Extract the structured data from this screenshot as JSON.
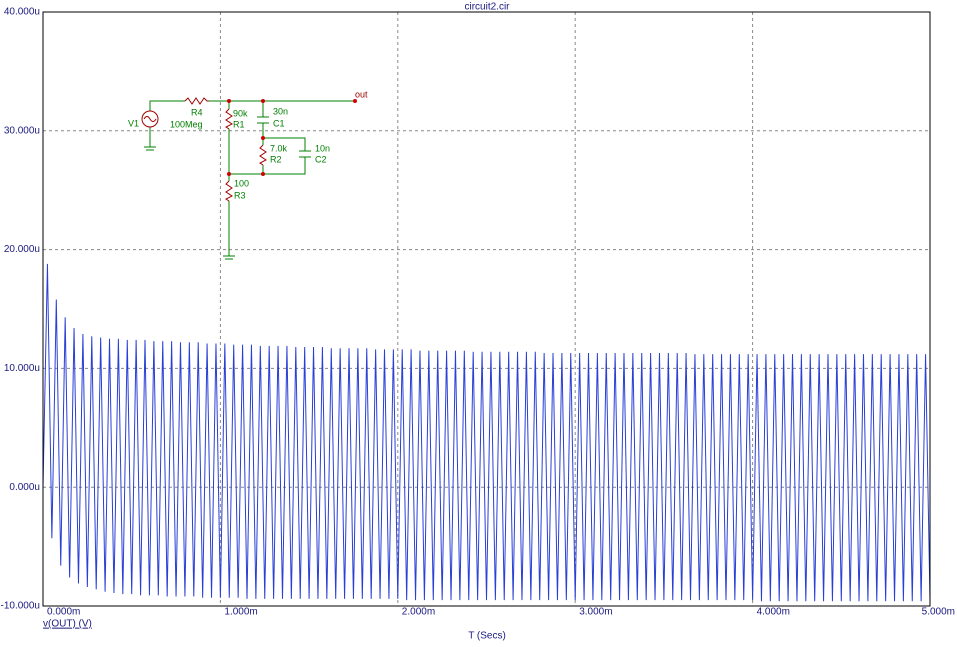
{
  "chart_data": {
    "type": "line",
    "title": "circuit2.cir",
    "xlabel": "T (Secs)",
    "xlim": [
      0,
      5
    ],
    "xticks": [
      {
        "value": 0,
        "label": "0.000m"
      },
      {
        "value": 1,
        "label": "1.000m"
      },
      {
        "value": 2,
        "label": "2.000m"
      },
      {
        "value": 3,
        "label": "3.000m"
      },
      {
        "value": 4,
        "label": "4.000m"
      },
      {
        "value": 5,
        "label": "5.000m"
      }
    ],
    "ylim": [
      -10,
      40
    ],
    "yticks": [
      {
        "value": -10,
        "label": "-10.000u"
      },
      {
        "value": 0,
        "label": "0.000u"
      },
      {
        "value": 10,
        "label": "10.000u"
      },
      {
        "value": 20,
        "label": "20.000u"
      },
      {
        "value": 30,
        "label": "30.000u"
      },
      {
        "value": 40,
        "label": "40.000u"
      }
    ],
    "grid": true,
    "x": [
      0,
      0.025,
      0.05,
      0.075,
      0.1,
      0.125,
      0.15,
      0.175,
      0.2,
      0.225,
      0.25,
      0.275,
      0.3,
      0.325,
      0.35,
      0.375,
      0.4,
      0.425,
      0.45,
      0.475,
      0.5,
      0.525,
      0.55,
      0.575,
      0.6,
      0.625,
      0.65,
      0.675,
      0.7,
      0.725,
      0.75,
      0.775,
      0.8,
      0.825,
      0.85,
      0.875,
      0.9,
      0.925,
      0.95,
      0.975,
      1,
      1.025,
      1.05,
      1.075,
      1.1,
      1.125,
      1.15,
      1.175,
      1.2,
      1.225,
      1.25,
      1.275,
      1.3,
      1.325,
      1.35,
      1.375,
      1.4,
      1.425,
      1.45,
      1.475,
      1.5,
      1.525,
      1.55,
      1.575,
      1.6,
      1.625,
      1.65,
      1.675,
      1.7,
      1.725,
      1.75,
      1.775,
      1.8,
      1.825,
      1.85,
      1.875,
      1.9,
      1.925,
      1.95,
      1.975,
      2,
      2.025,
      2.05,
      2.075,
      2.1,
      2.125,
      2.15,
      2.175,
      2.2,
      2.225,
      2.25,
      2.275,
      2.3,
      2.325,
      2.35,
      2.375,
      2.4,
      2.425,
      2.45,
      2.475,
      2.5,
      2.525,
      2.55,
      2.575,
      2.6,
      2.625,
      2.65,
      2.675,
      2.7,
      2.725,
      2.75,
      2.775,
      2.8,
      2.825,
      2.85,
      2.875,
      2.9,
      2.925,
      2.95,
      2.975,
      3,
      3.025,
      3.05,
      3.075,
      3.1,
      3.125,
      3.15,
      3.175,
      3.2,
      3.225,
      3.25,
      3.275,
      3.3,
      3.325,
      3.35,
      3.375,
      3.4,
      3.425,
      3.45,
      3.475,
      3.5,
      3.525,
      3.55,
      3.575,
      3.6,
      3.625,
      3.65,
      3.675,
      3.7,
      3.725,
      3.75,
      3.775,
      3.8,
      3.825,
      3.85,
      3.875,
      3.9,
      3.925,
      3.95,
      3.975,
      4,
      4.025,
      4.05,
      4.075,
      4.1,
      4.125,
      4.15,
      4.175,
      4.2,
      4.225,
      4.25,
      4.275,
      4.3,
      4.325,
      4.35,
      4.375,
      4.4,
      4.425,
      4.45,
      4.475,
      4.5,
      4.525,
      4.55,
      4.575,
      4.6,
      4.625,
      4.65,
      4.675,
      4.7,
      4.725,
      4.75,
      4.775,
      4.8,
      4.825,
      4.85,
      4.875,
      4.9,
      4.925,
      4.95,
      4.975,
      5
    ],
    "series": [
      {
        "name": "v(OUT) (V)",
        "color": "#2a3fd6",
        "values": [
          0,
          18.8,
          -4.3,
          15.8,
          -6.6,
          14.3,
          -7.6,
          13.4,
          -8.1,
          12.9,
          -8.4,
          12.7,
          -8.6,
          12.6,
          -8.8,
          12.5,
          -8.9,
          12.5,
          -9.0,
          12.4,
          -9.0,
          12.4,
          -9.1,
          12.4,
          -9.1,
          12.3,
          -9.1,
          12.3,
          -9.2,
          12.3,
          -9.2,
          12.2,
          -9.2,
          12.2,
          -9.2,
          12.2,
          -9.3,
          12.1,
          -9.3,
          12.1,
          -9.3,
          12.1,
          -9.3,
          12.0,
          -9.3,
          12.0,
          -9.4,
          12.0,
          -9.4,
          11.9,
          -9.4,
          11.9,
          -9.4,
          11.9,
          -9.4,
          11.9,
          -9.4,
          11.8,
          -9.4,
          11.8,
          -9.4,
          11.8,
          -9.4,
          11.8,
          -9.4,
          11.7,
          -9.4,
          11.7,
          -9.4,
          11.7,
          -9.4,
          11.7,
          -9.4,
          11.7,
          -9.4,
          11.6,
          -9.4,
          11.6,
          -9.4,
          11.6,
          -9.4,
          11.6,
          -9.5,
          11.6,
          -9.5,
          11.5,
          -9.5,
          11.5,
          -9.5,
          11.5,
          -9.5,
          11.5,
          -9.5,
          11.5,
          -9.5,
          11.5,
          -9.5,
          11.4,
          -9.5,
          11.4,
          -9.5,
          11.4,
          -9.5,
          11.4,
          -9.5,
          11.4,
          -9.5,
          11.4,
          -9.5,
          11.4,
          -9.5,
          11.4,
          -9.5,
          11.3,
          -9.5,
          11.3,
          -9.5,
          11.3,
          -9.5,
          11.3,
          -9.5,
          11.3,
          -9.5,
          11.3,
          -9.5,
          11.3,
          -9.5,
          11.3,
          -9.5,
          11.3,
          -9.5,
          11.3,
          -9.5,
          11.3,
          -9.5,
          11.3,
          -9.5,
          11.3,
          -9.5,
          11.3,
          -9.5,
          11.3,
          -9.5,
          11.3,
          -9.5,
          11.3,
          -9.5,
          11.2,
          -9.5,
          11.2,
          -9.5,
          11.2,
          -9.5,
          11.2,
          -9.5,
          11.2,
          -9.5,
          11.2,
          -9.5,
          11.2,
          -9.5,
          11.2,
          -9.6,
          11.2,
          -9.6,
          11.2,
          -9.6,
          11.2,
          -9.6,
          11.2,
          -9.6,
          11.2,
          -9.6,
          11.2,
          -9.6,
          11.2,
          -9.6,
          11.2,
          -9.6,
          11.2,
          -9.6,
          11.2,
          -9.6,
          11.2,
          -9.6,
          11.2,
          -9.6,
          11.2,
          -9.6,
          11.2,
          -9.6,
          11.2,
          -9.6,
          11.2,
          -9.6,
          11.2,
          -9.6,
          11.2,
          -9.6,
          11.2,
          -9.6
        ]
      }
    ],
    "schematic": {
      "v1": "V1",
      "r4": "R4",
      "r4_value": "100Meg",
      "r1": "R1",
      "r1_value": "90k",
      "c1": "C1",
      "c1_value": "30n",
      "r2": "R2",
      "r2_value": "7.0k",
      "c2": "C2",
      "c2_value": "10n",
      "r3": "R3",
      "r3_value": "100",
      "out": "out"
    }
  }
}
